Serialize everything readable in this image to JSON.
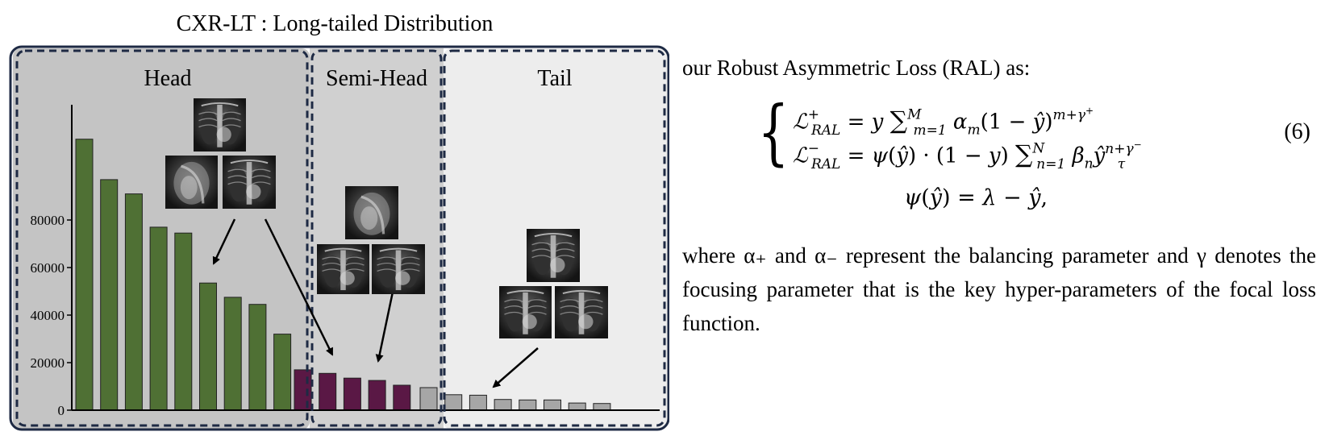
{
  "figure": {
    "title": "CXR-LT : Long-tailed Distribution",
    "regions": [
      {
        "label": "Head"
      },
      {
        "label": "Semi-Head"
      },
      {
        "label": "Tail"
      }
    ],
    "colors": {
      "head_bar": "#4f7034",
      "semi_head_bar": "#5a1845",
      "tail_bar": "#a6a6a6",
      "head_bg": "#c4c4c4",
      "semi_head_bg": "#d0d0d0",
      "tail_bg": "#ededed",
      "frame": "#1e2a44"
    }
  },
  "chart_data": {
    "type": "bar",
    "title": "CXR-LT : Long-tailed Distribution",
    "xlabel": "",
    "ylabel": "",
    "ylim": [
      0,
      115000
    ],
    "yticks": [
      0,
      20000,
      40000,
      60000,
      80000
    ],
    "grid": false,
    "series": [
      {
        "group": "Head",
        "values": [
          114000,
          97000,
          91000,
          77000,
          74500,
          53500,
          47500,
          44500,
          32000
        ]
      },
      {
        "group": "Semi-Head",
        "values": [
          17000,
          15500,
          13500,
          12500,
          10500
        ]
      },
      {
        "group": "Tail",
        "values": [
          9500,
          6500,
          6300,
          4500,
          4300,
          4300,
          3000,
          2800
        ]
      }
    ]
  },
  "text": {
    "intro": "our Robust Asymmetric Loss (RAL) as:",
    "equation_number": "(6)",
    "after": "where α₊ and α₋ represent the balancing parameter and γ denotes the focusing parameter that is the key hyper-parameters of the focal loss function."
  }
}
